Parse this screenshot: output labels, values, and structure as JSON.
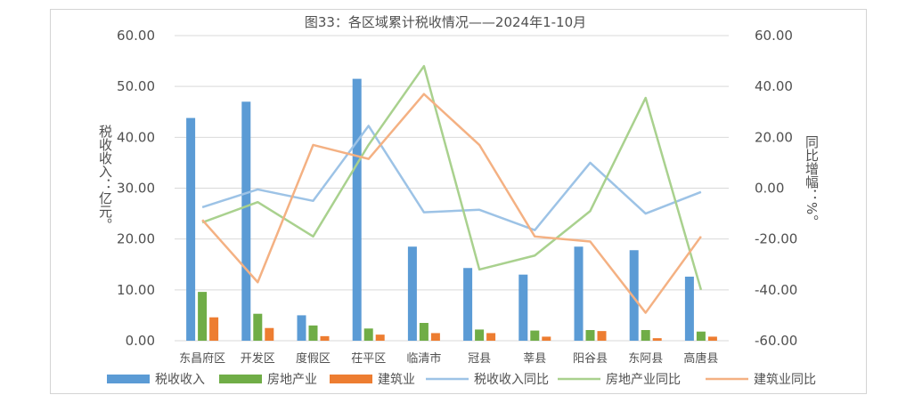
{
  "chart_data": {
    "type": "bar",
    "title": "图33：各区域累计税收情况——2024年1-10月",
    "ylabel": "税收收入：亿元。",
    "y2label": "同比增幅：%。",
    "ylim": [
      0,
      60
    ],
    "y2lim": [
      -60,
      60
    ],
    "yticks": [
      "0.00",
      "10.00",
      "20.00",
      "30.00",
      "40.00",
      "50.00",
      "60.00"
    ],
    "y2ticks": [
      "-60.00",
      "-40.00",
      "-20.00",
      "0.00",
      "20.00",
      "40.00",
      "60.00"
    ],
    "grid": true,
    "legend_position": "bottom",
    "categories": [
      "东昌府区",
      "开发区",
      "度假区",
      "茌平区",
      "临清市",
      "冠县",
      "莘县",
      "阳谷县",
      "东阿县",
      "高唐县"
    ],
    "bar_series": [
      {
        "name": "税收收入",
        "color": "#5b9bd5",
        "values": [
          43.8,
          47.0,
          5.0,
          51.5,
          18.5,
          14.3,
          13.0,
          18.5,
          17.8,
          12.6
        ]
      },
      {
        "name": "房地产业",
        "color": "#70ad47",
        "values": [
          9.6,
          5.3,
          3.0,
          2.4,
          3.5,
          2.2,
          2.0,
          2.1,
          2.1,
          1.8
        ]
      },
      {
        "name": "建筑业",
        "color": "#ed7d31",
        "values": [
          4.6,
          2.5,
          0.9,
          1.2,
          1.5,
          1.5,
          0.8,
          1.9,
          0.5,
          0.8
        ]
      }
    ],
    "line_series": [
      {
        "name": "税收收入同比",
        "color": "#9dc3e6",
        "values": [
          -7.5,
          -0.5,
          -5.0,
          24.5,
          -9.5,
          -8.5,
          -16.5,
          10.0,
          -10.0,
          -1.5
        ]
      },
      {
        "name": "房地产业同比",
        "color": "#a9d18e",
        "values": [
          -13.5,
          -5.5,
          -19.0,
          17.0,
          48.0,
          -32.0,
          -26.5,
          -9.0,
          35.5,
          -40.0
        ]
      },
      {
        "name": "建筑业同比",
        "color": "#f4b183",
        "values": [
          -12.5,
          -37.0,
          17.0,
          11.5,
          37.0,
          17.0,
          -19.0,
          -21.0,
          -49.0,
          -19.0
        ]
      }
    ]
  }
}
